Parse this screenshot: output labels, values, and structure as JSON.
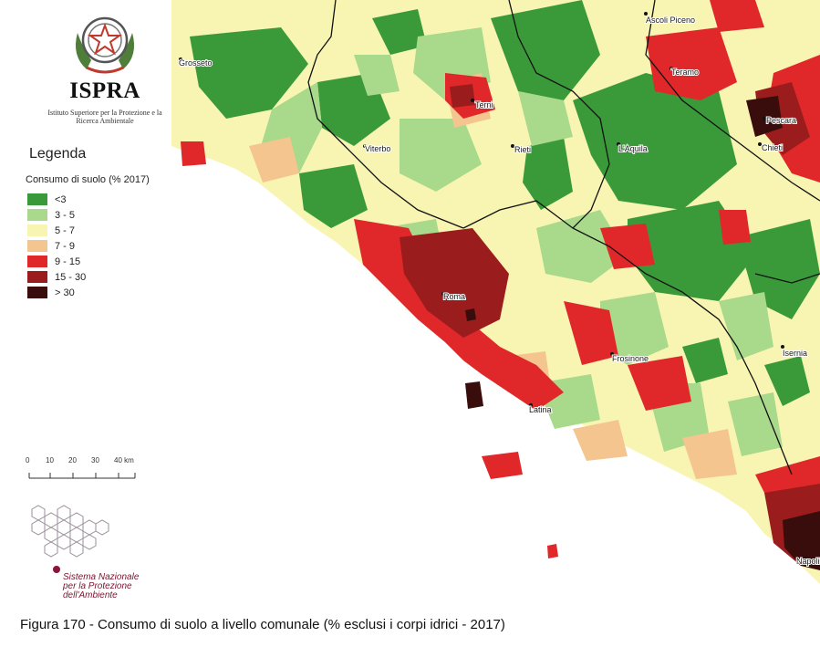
{
  "header": {
    "logo_name": "ISPRA",
    "logo_subtitle": "Istituto Superiore per la Protezione e la Ricerca Ambientale"
  },
  "legend": {
    "title": "Legenda",
    "subtitle": "Consumo di suolo (% 2017)",
    "items": [
      {
        "label": "<3",
        "color": "#3a9a3a"
      },
      {
        "label": "3 - 5",
        "color": "#a9d98b"
      },
      {
        "label": "5 - 7",
        "color": "#f8f5b3"
      },
      {
        "label": "7 - 9",
        "color": "#f5c58f"
      },
      {
        "label": "9 - 15",
        "color": "#e0272a"
      },
      {
        "label": "15 - 30",
        "color": "#9b1c1c"
      },
      {
        "label": "> 30",
        "color": "#3a0d0d"
      }
    ]
  },
  "scale_bar": {
    "ticks": [
      "0",
      "10",
      "20",
      "30",
      "40 km"
    ]
  },
  "cities": [
    "Grosseto",
    "Viterbo",
    "Terni",
    "Rieti",
    "L'Aquila",
    "Teramo",
    "Ascoli Piceno",
    "Pescara",
    "Chieti",
    "Roma",
    "Frosinone",
    "Latina",
    "Isernia",
    "Napoli"
  ],
  "footer_logo": {
    "line1": "Sistema Nazionale",
    "line2": "per la Protezione",
    "line3": "dell'Ambiente"
  },
  "caption": "Figura 170 - Consumo di suolo a livello comunale (% esclusi i corpi idrici - 2017)"
}
